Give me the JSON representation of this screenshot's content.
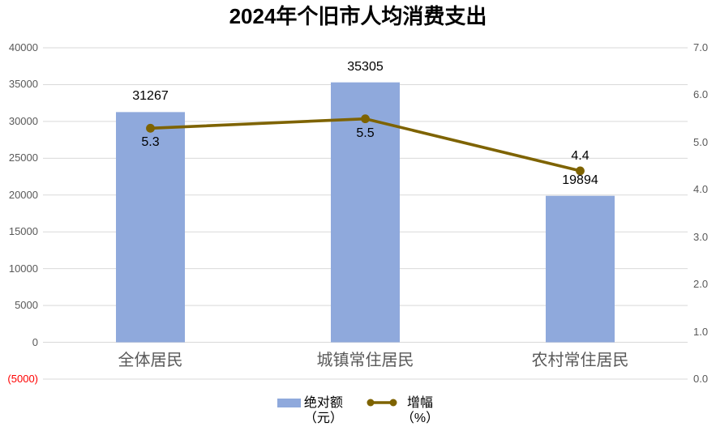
{
  "title": "2024年个旧市人均消费支出",
  "colors": {
    "bar": "#8FA9DC",
    "line": "#7E6300",
    "gridline": "#D9D9D9",
    "axis_label": "#595959",
    "category_label": "#595959",
    "negative_tick": "#FF0000",
    "data_label": "#000000"
  },
  "legend": {
    "bar": {
      "label": "绝对额",
      "unit": "（元）"
    },
    "line": {
      "label": "增幅",
      "unit": "（%）"
    }
  },
  "chart_data": {
    "type": "bar",
    "title": "2024年个旧市人均消费支出",
    "categories": [
      "全体居民",
      "城镇常住居民",
      "农村常住居民"
    ],
    "series": [
      {
        "name": "绝对额（元）",
        "type": "bar",
        "axis": "left",
        "values": [
          31267,
          35305,
          19894
        ],
        "data_labels": [
          "31267",
          "35305",
          "19894"
        ]
      },
      {
        "name": "增幅（%）",
        "type": "line",
        "axis": "right",
        "values": [
          5.3,
          5.5,
          4.4
        ],
        "data_labels": [
          "5.3",
          "5.5",
          "4.4"
        ]
      }
    ],
    "y_left": {
      "min": -5000,
      "max": 40000,
      "ticks": [
        {
          "label": "40000",
          "value": 40000
        },
        {
          "label": "35000",
          "value": 35000
        },
        {
          "label": "30000",
          "value": 30000
        },
        {
          "label": "25000",
          "value": 25000
        },
        {
          "label": "20000",
          "value": 20000
        },
        {
          "label": "15000",
          "value": 15000
        },
        {
          "label": "10000",
          "value": 10000
        },
        {
          "label": "5000",
          "value": 5000
        },
        {
          "label": "0",
          "value": 0
        },
        {
          "label": "(5000)",
          "value": -5000,
          "negative": true
        }
      ]
    },
    "y_right": {
      "min": 0,
      "max": 7,
      "ticks": [
        {
          "label": "7.0",
          "value": 7
        },
        {
          "label": "6.0",
          "value": 6
        },
        {
          "label": "5.0",
          "value": 5
        },
        {
          "label": "4.0",
          "value": 4
        },
        {
          "label": "3.0",
          "value": 3
        },
        {
          "label": "2.0",
          "value": 2
        },
        {
          "label": "1.0",
          "value": 1
        },
        {
          "label": "0.0",
          "value": 0
        }
      ]
    },
    "grid": "horizontal",
    "legend_position": "bottom"
  }
}
